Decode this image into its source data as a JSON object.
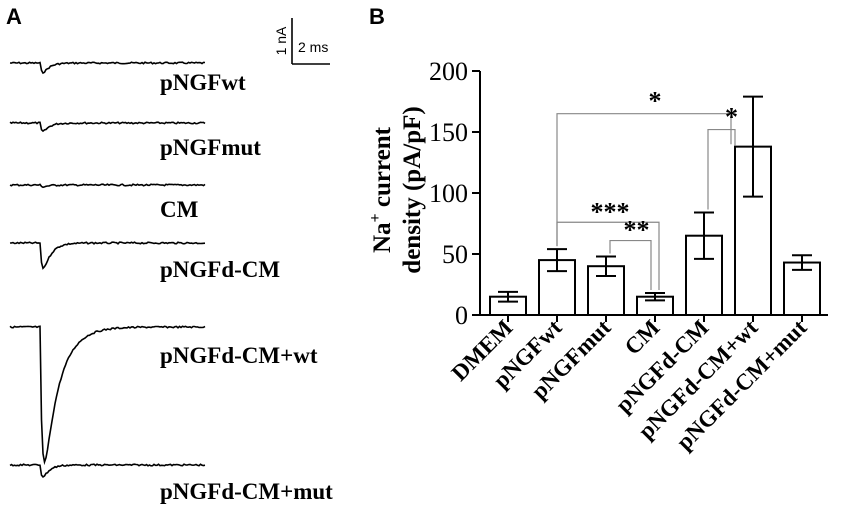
{
  "panel_a": {
    "letter": "A",
    "scale_bar": {
      "vertical_label": "1 nA",
      "horizontal_label": "2 ms"
    },
    "traces": [
      {
        "label": "pNGFwt",
        "peak_rel": 0.1
      },
      {
        "label": "pNGFmut",
        "peak_rel": 0.09
      },
      {
        "label": "CM",
        "peak_rel": 0.02
      },
      {
        "label": "pNGFd-CM",
        "peak_rel": 0.24
      },
      {
        "label": "pNGFd-CM+wt",
        "peak_rel": 1.0
      },
      {
        "label": "pNGFd-CM+mut",
        "peak_rel": 0.12
      }
    ]
  },
  "panel_b": {
    "letter": "B"
  },
  "chart_data": {
    "type": "bar",
    "title": "",
    "xlabel": "",
    "ylabel_line1_main": "Na",
    "ylabel_line1_sup": "+",
    "ylabel_line1_rest": " current",
    "ylabel_line2": "density (pA/pF)",
    "ylim": [
      0,
      200
    ],
    "yticks": [
      "0",
      "50",
      "100",
      "150",
      "200"
    ],
    "categories": [
      "DMEM",
      "pNGFwt",
      "pNGFmut",
      "CM",
      "pNGFd-CM",
      "pNGFd-CM+wt",
      "pNGFd-CM+mut"
    ],
    "values": [
      15,
      45,
      40,
      15,
      65,
      138,
      43
    ],
    "errors": [
      4,
      9,
      8,
      3,
      19,
      41,
      6
    ],
    "significance": [
      {
        "from": "pNGFwt",
        "to": "pNGFd-CM+wt",
        "label": "*"
      },
      {
        "from": "pNGFd-CM",
        "to": "pNGFd-CM+wt",
        "label": "*"
      },
      {
        "from": "pNGFwt",
        "to": "CM",
        "label": "***"
      },
      {
        "from": "pNGFmut",
        "to": "CM",
        "label": "**"
      }
    ]
  }
}
